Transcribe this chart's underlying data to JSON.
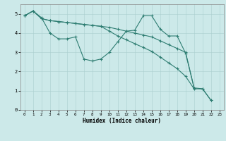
{
  "xlabel": "Humidex (Indice chaleur)",
  "background_color": "#cce9e9",
  "line_color": "#2e7d72",
  "grid_color": "#aacfcf",
  "xlim": [
    -0.5,
    23.5
  ],
  "ylim": [
    0,
    5.5
  ],
  "yticks": [
    0,
    1,
    2,
    3,
    4,
    5
  ],
  "xticks": [
    0,
    1,
    2,
    3,
    4,
    5,
    6,
    7,
    8,
    9,
    10,
    11,
    12,
    13,
    14,
    15,
    16,
    17,
    18,
    19,
    20,
    21,
    22,
    23
  ],
  "lines": [
    {
      "x": [
        0,
        1,
        2,
        3,
        4,
        5,
        6,
        7,
        8,
        9,
        10,
        11,
        12,
        13,
        14,
        15,
        16,
        17,
        18,
        19,
        20,
        21,
        22
      ],
      "y": [
        4.9,
        5.15,
        4.8,
        4.0,
        3.7,
        3.7,
        3.8,
        2.65,
        2.55,
        2.65,
        3.0,
        3.55,
        4.1,
        4.15,
        4.9,
        4.9,
        4.2,
        3.85,
        3.85,
        2.95,
        1.15,
        1.1,
        0.5
      ]
    },
    {
      "x": [
        0,
        1,
        2,
        3,
        4,
        5,
        6,
        7,
        8,
        9,
        10,
        11,
        12,
        13,
        14,
        15,
        16,
        17,
        18,
        19,
        20
      ],
      "y": [
        4.9,
        5.15,
        4.75,
        4.65,
        4.6,
        4.55,
        4.5,
        4.45,
        4.4,
        4.35,
        4.3,
        4.2,
        4.1,
        4.0,
        3.9,
        3.8,
        3.6,
        3.4,
        3.2,
        3.0,
        1.15
      ]
    },
    {
      "x": [
        0,
        1,
        2,
        3,
        4,
        5,
        6,
        7,
        8,
        9,
        10,
        11,
        12,
        13,
        14,
        15,
        16,
        17,
        18,
        19,
        20,
        21,
        22
      ],
      "y": [
        4.9,
        5.15,
        4.75,
        4.65,
        4.6,
        4.55,
        4.5,
        4.45,
        4.4,
        4.35,
        4.1,
        3.85,
        3.65,
        3.45,
        3.25,
        3.05,
        2.75,
        2.45,
        2.15,
        1.75,
        1.1,
        1.1,
        0.5
      ]
    }
  ]
}
